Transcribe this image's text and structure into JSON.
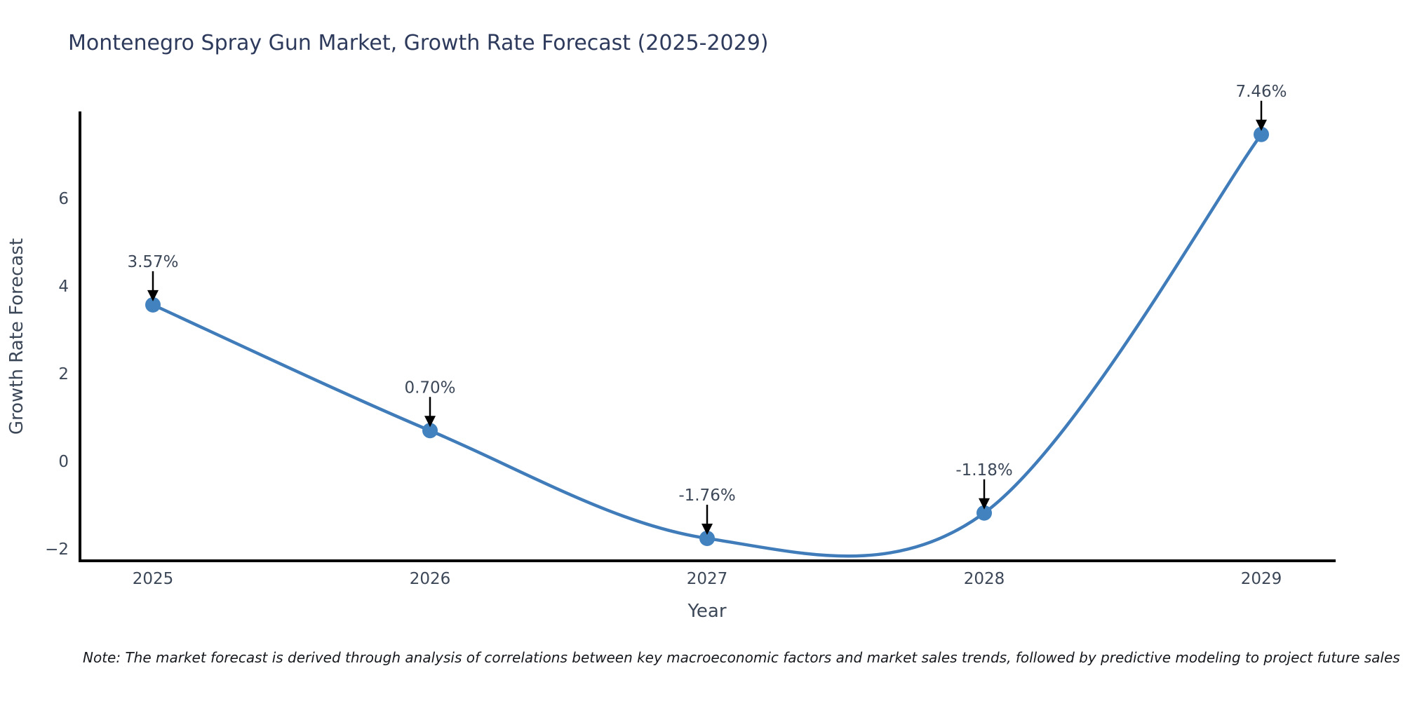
{
  "chart_data": {
    "type": "line",
    "title": "Montenegro Spray Gun Market, Growth Rate Forecast (2025-2029)",
    "xlabel": "Year",
    "ylabel": "Growth Rate Forecast",
    "x": [
      2025,
      2026,
      2027,
      2028,
      2029
    ],
    "series": [
      {
        "name": "Growth Rate Forecast",
        "values": [
          3.57,
          0.7,
          -1.76,
          -1.18,
          7.46
        ],
        "point_labels": [
          "3.57%",
          "0.70%",
          "-1.76%",
          "-1.18%",
          "7.46%"
        ]
      }
    ],
    "yticks": [
      -2,
      0,
      2,
      4,
      6
    ],
    "ylim": [
      -2.3,
      8.0
    ],
    "grid": false,
    "legend": false,
    "line_shape": "spline",
    "marker": "circle",
    "annotations_have_arrows": true,
    "note": "Note: The market forecast is derived through analysis of correlations between key macroeconomic factors and market sales trends, followed by predictive modeling to project future sales",
    "colors": {
      "line": "#3f7cb9",
      "marker": "#4282be",
      "spine": "#000000",
      "arrow": "#000000",
      "title_text": "#2d3a5c",
      "axis_text": "#3c4758",
      "note_text": "#15181d",
      "background": "#ffffff"
    }
  }
}
